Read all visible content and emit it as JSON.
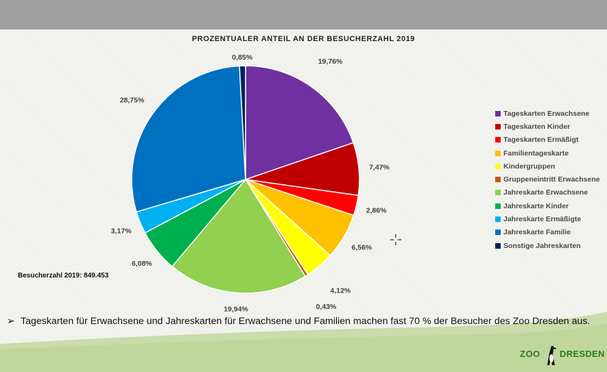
{
  "chart_data": {
    "type": "pie",
    "title": "PROZENTUALER ANTEIL AN DER BESUCHERZAHL 2019",
    "legend_position": "right",
    "slices": [
      {
        "label": "Tageskarten Erwachsene",
        "value": 19.76,
        "display": "19,76%",
        "color": "#7030a0"
      },
      {
        "label": "Tageskarten Kinder",
        "value": 7.47,
        "display": "7,47%",
        "color": "#c00000"
      },
      {
        "label": "Tageskarten Ermäßigt",
        "value": 2.86,
        "display": "2,86%",
        "color": "#ff0000"
      },
      {
        "label": "Familientageskarte",
        "value": 6.56,
        "display": "6,56%",
        "color": "#ffc000"
      },
      {
        "label": "Kindergruppen",
        "value": 4.12,
        "display": "4,12%",
        "color": "#ffff00"
      },
      {
        "label": "Gruppeneintritt Erwachsene",
        "value": 0.43,
        "display": "0,43%",
        "color": "#c55a11"
      },
      {
        "label": "Jahreskarte Erwachsene",
        "value": 19.94,
        "display": "19,94%",
        "color": "#92d050"
      },
      {
        "label": "Jahreskarte Kinder",
        "value": 6.08,
        "display": "6,08%",
        "color": "#00b050"
      },
      {
        "label": "Jahreskarte Ermäßigte",
        "value": 3.17,
        "display": "3,17%",
        "color": "#00b0f0"
      },
      {
        "label": "Jahreskarte Familie",
        "value": 28.75,
        "display": "28,75%",
        "color": "#0070c0"
      },
      {
        "label": "Sonstige Jahreskarten",
        "value": 0.85,
        "display": "0,85%",
        "color": "#002060"
      }
    ]
  },
  "visitor_total": "Besucherzahl 2019: 849.453",
  "note": {
    "bullet": "➢",
    "text": "Tageskarten für Erwachsene und Jahreskarten für Erwachsene und Familien machen fast 70 % der Besucher des Zoo Dresden aus."
  },
  "logo": {
    "left": "ZOO",
    "right": "DRESDEN"
  },
  "colors": {
    "topbar": "#a0a0a0",
    "footer_green": "#c9dcaa",
    "logo_green": "#2b7a1f"
  }
}
